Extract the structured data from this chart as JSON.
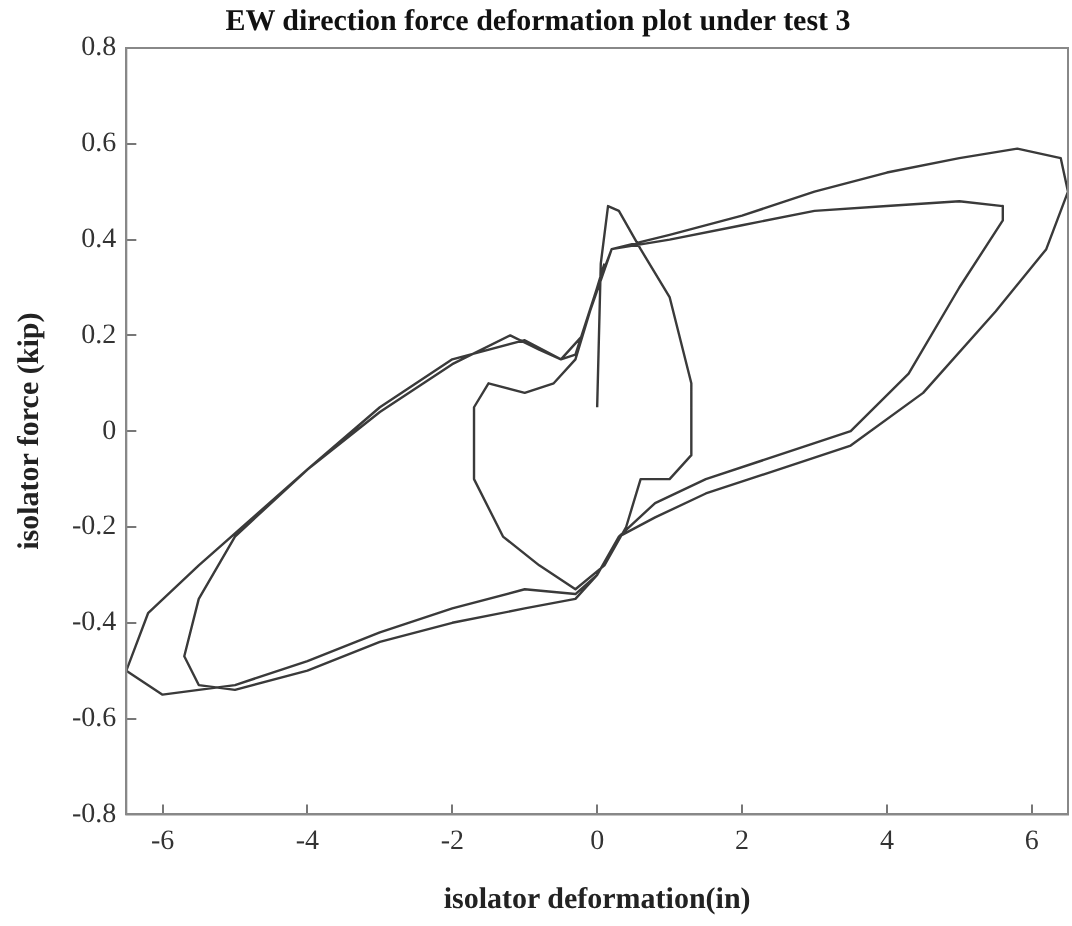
{
  "chart_data": {
    "type": "line",
    "title": "EW direction force deformation plot under test 3",
    "xlabel": "isolator deformation(in)",
    "ylabel": "isolator force (kip)",
    "xlim": [
      -6.5,
      6.5
    ],
    "xticks": [
      -6,
      -4,
      -2,
      0,
      2,
      4,
      6
    ],
    "ylim": [
      -0.8,
      0.8
    ],
    "yticks": [
      -0.8,
      -0.6,
      -0.4,
      -0.2,
      0,
      0.2,
      0.4,
      0.6,
      0.8
    ],
    "grid": false,
    "legend": false,
    "marker": "none",
    "line_style": "solid",
    "series": [
      {
        "color": "#3a3a3a",
        "x": [
          0,
          0.05,
          0.15,
          0.3,
          0.6,
          1.0,
          1.3,
          1.3,
          1.0,
          0.6,
          0.4,
          0.1,
          -0.3,
          -0.8,
          -1.3,
          -1.7,
          -1.7,
          -1.5,
          -1.0,
          -0.6,
          -0.3,
          -0.1,
          0.2,
          1,
          2,
          3,
          4,
          5,
          5.6,
          5.6,
          5,
          4.3,
          3.5,
          2.5,
          1.5,
          0.8,
          0.3,
          0,
          -0.3,
          -1,
          -2,
          -3,
          -4,
          -5,
          -5.5,
          -5.7,
          -5.5,
          -5,
          -4,
          -3,
          -2,
          -1.2,
          -0.8,
          -0.5,
          -0.3,
          0,
          0.2,
          1,
          2,
          3,
          4,
          5,
          5.8,
          6.4,
          6.5,
          6.2,
          5.5,
          4.5,
          3.5,
          2.5,
          1.5,
          0.8,
          0.3,
          0,
          -0.3,
          -1,
          -2,
          -3,
          -4,
          -5,
          -6,
          -6.5,
          -6.2,
          -5.5,
          -4,
          -3,
          -2,
          -1,
          -0.5,
          -0.2,
          0.1
        ],
        "values": [
          0.05,
          0.35,
          0.47,
          0.46,
          0.38,
          0.28,
          0.1,
          -0.05,
          -0.1,
          -0.1,
          -0.2,
          -0.28,
          -0.33,
          -0.28,
          -0.22,
          -0.1,
          0.05,
          0.1,
          0.08,
          0.1,
          0.15,
          0.25,
          0.38,
          0.4,
          0.43,
          0.46,
          0.47,
          0.48,
          0.47,
          0.44,
          0.3,
          0.12,
          0.0,
          -0.05,
          -0.1,
          -0.15,
          -0.22,
          -0.3,
          -0.35,
          -0.37,
          -0.4,
          -0.44,
          -0.5,
          -0.54,
          -0.53,
          -0.47,
          -0.35,
          -0.22,
          -0.08,
          0.04,
          0.14,
          0.2,
          0.17,
          0.15,
          0.16,
          0.3,
          0.38,
          0.41,
          0.45,
          0.5,
          0.54,
          0.57,
          0.59,
          0.57,
          0.5,
          0.38,
          0.25,
          0.08,
          -0.03,
          -0.08,
          -0.13,
          -0.18,
          -0.22,
          -0.3,
          -0.34,
          -0.33,
          -0.37,
          -0.42,
          -0.48,
          -0.53,
          -0.55,
          -0.5,
          -0.38,
          -0.28,
          -0.08,
          0.05,
          0.15,
          0.19,
          0.15,
          0.2,
          0.35
        ]
      }
    ]
  }
}
